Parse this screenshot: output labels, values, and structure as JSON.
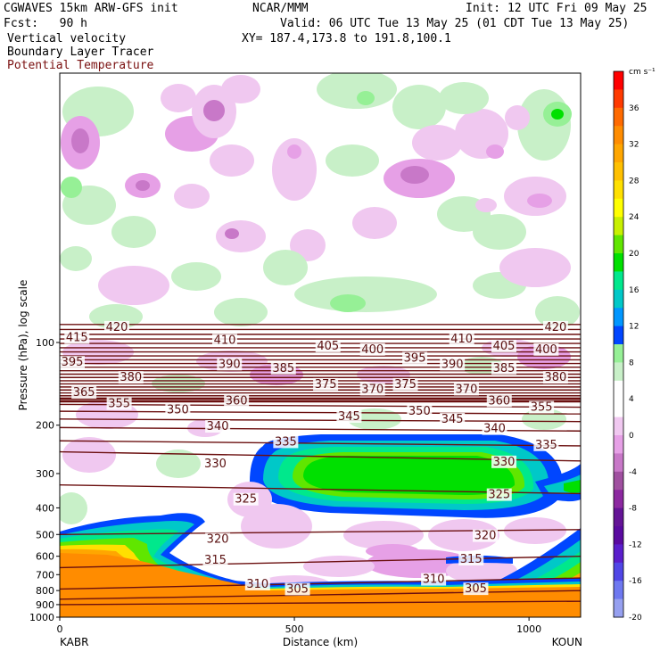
{
  "header": {
    "model": "CGWAVES 15km ARW-GFS init",
    "org": "NCAR/MMM",
    "init": "Init: 12 UTC Fri 09 May 25",
    "fcst": "Fcst:   90 h",
    "valid": "Valid: 06 UTC Tue 13 May 25 (01 CDT Tue 13 May 25)",
    "field1": "Vertical velocity",
    "field2": "Boundary Layer Tracer",
    "field3": "Potential Temperature",
    "xy": "XY= 187.4,173.8 to 191.8,100.1"
  },
  "colors": {
    "theta": "#6b0f0f",
    "field3_text": "#7a1010"
  },
  "chart_data": {
    "type": "heatmap",
    "xlabel": "Distance (km)",
    "ylabel": "Pressure (hPa), log scale",
    "y_scale": "log",
    "x_ticks": [
      0,
      500,
      1000
    ],
    "x_tick_labels": [
      "0",
      "500",
      "1000"
    ],
    "x_range": [
      0,
      1110
    ],
    "y_ticks": [
      1000,
      900,
      800,
      700,
      600,
      500,
      400,
      300,
      200,
      100
    ],
    "y_tick_labels": [
      "1000",
      "900",
      "800",
      "700",
      "600",
      "500",
      "400",
      "300",
      "200",
      "100"
    ],
    "endpoints": {
      "left": "KABR",
      "right": "KOUN"
    },
    "colorbar": {
      "units": "cm s⁻¹",
      "labels": [
        "36",
        "32",
        "28",
        "24",
        "20",
        "16",
        "12",
        "8",
        "4",
        "0",
        "-4",
        "-8",
        "-12",
        "-16",
        "-20"
      ],
      "colors": [
        "#ff0000",
        "#ff3a00",
        "#ff6a00",
        "#ff8c00",
        "#ffa600",
        "#ffc000",
        "#ffe000",
        "#ffff00",
        "#c8f000",
        "#60e600",
        "#00e000",
        "#00e88c",
        "#00c8c8",
        "#0096ff",
        "#0046ff",
        "#96f096",
        "#c8f0c8",
        "#ffffff",
        "#ffffff",
        "#f0c8f0",
        "#e6a0e6",
        "#c878c8",
        "#a050a0",
        "#8c28a0",
        "#641496",
        "#5a0aa0",
        "#5a1ecc",
        "#5046e6",
        "#6e78f0",
        "#96a0f0"
      ]
    },
    "theta_labels": [
      {
        "v": "420",
        "x": 95,
        "p": 88
      },
      {
        "v": "420",
        "x": 1030,
        "p": 88
      },
      {
        "v": "415",
        "x": 10,
        "p": 96
      },
      {
        "v": "410",
        "x": 325,
        "p": 98
      },
      {
        "v": "410",
        "x": 830,
        "p": 97
      },
      {
        "v": "405",
        "x": 545,
        "p": 103
      },
      {
        "v": "405",
        "x": 920,
        "p": 103
      },
      {
        "v": "400",
        "x": 640,
        "p": 106
      },
      {
        "v": "400",
        "x": 1010,
        "p": 106
      },
      {
        "v": "395",
        "x": 0,
        "p": 118
      },
      {
        "v": "395",
        "x": 730,
        "p": 114
      },
      {
        "v": "390",
        "x": 335,
        "p": 120
      },
      {
        "v": "390",
        "x": 810,
        "p": 120
      },
      {
        "v": "385",
        "x": 450,
        "p": 124
      },
      {
        "v": "385",
        "x": 920,
        "p": 124
      },
      {
        "v": "380",
        "x": 125,
        "p": 134
      },
      {
        "v": "380",
        "x": 1030,
        "p": 134
      },
      {
        "v": "375",
        "x": 540,
        "p": 142
      },
      {
        "v": "375",
        "x": 710,
        "p": 142
      },
      {
        "v": "370",
        "x": 640,
        "p": 148
      },
      {
        "v": "370",
        "x": 840,
        "p": 148
      },
      {
        "v": "365",
        "x": 25,
        "p": 152
      },
      {
        "v": "360",
        "x": 350,
        "p": 163
      },
      {
        "v": "360",
        "x": 910,
        "p": 163
      },
      {
        "v": "355",
        "x": 100,
        "p": 167
      },
      {
        "v": "355",
        "x": 1000,
        "p": 172
      },
      {
        "v": "350",
        "x": 225,
        "p": 176
      },
      {
        "v": "350",
        "x": 740,
        "p": 178
      },
      {
        "v": "345",
        "x": 590,
        "p": 186
      },
      {
        "v": "345",
        "x": 810,
        "p": 190
      },
      {
        "v": "340",
        "x": 310,
        "p": 202
      },
      {
        "v": "340",
        "x": 900,
        "p": 206
      },
      {
        "v": "335",
        "x": 455,
        "p": 230
      },
      {
        "v": "335",
        "x": 1010,
        "p": 236
      },
      {
        "v": "330",
        "x": 305,
        "p": 276
      },
      {
        "v": "330",
        "x": 920,
        "p": 272
      },
      {
        "v": "325",
        "x": 370,
        "p": 372
      },
      {
        "v": "325",
        "x": 910,
        "p": 358
      },
      {
        "v": "320",
        "x": 310,
        "p": 520
      },
      {
        "v": "320",
        "x": 880,
        "p": 505
      },
      {
        "v": "315",
        "x": 305,
        "p": 620
      },
      {
        "v": "315",
        "x": 850,
        "p": 615
      },
      {
        "v": "310",
        "x": 395,
        "p": 758
      },
      {
        "v": "310",
        "x": 770,
        "p": 728
      },
      {
        "v": "305",
        "x": 480,
        "p": 790
      },
      {
        "v": "305",
        "x": 860,
        "p": 788
      }
    ]
  }
}
